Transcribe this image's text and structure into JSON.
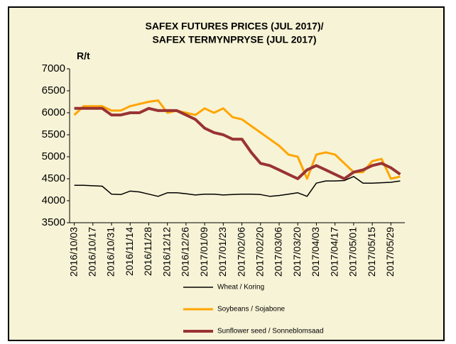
{
  "chart_data": {
    "type": "line",
    "title": [
      "SAFEX FUTURES PRICES (JUL 2017)/",
      "SAFEX TERMYNPRYSE (JUL 2017)"
    ],
    "y_label": "R/t",
    "categories": [
      "2016/10/03",
      null,
      "2016/10/17",
      null,
      "2016/10/31",
      null,
      "2016/11/14",
      null,
      "2016/11/28",
      null,
      "2016/12/12",
      null,
      "2016/12/26",
      null,
      "2017/01/09",
      null,
      "2017/01/23",
      null,
      "2017/02/06",
      null,
      "2017/02/20",
      null,
      "2017/03/06",
      null,
      "2017/03/20",
      null,
      "2017/04/03",
      null,
      "2017/04/17",
      null,
      "2017/05/01",
      null,
      "2017/05/15",
      null,
      "2017/05/29",
      null
    ],
    "series": [
      {
        "name": "Wheat / Koring",
        "color": "#000000",
        "width": 1.5,
        "values": [
          4350,
          4350,
          4340,
          4330,
          4150,
          4140,
          4220,
          4200,
          4150,
          4100,
          4180,
          4180,
          4160,
          4130,
          4150,
          4150,
          4130,
          4140,
          4150,
          4150,
          4140,
          4100,
          4120,
          4150,
          4180,
          4100,
          4400,
          4450,
          4450,
          4460,
          4550,
          4400,
          4400,
          4410,
          4420,
          4450
        ]
      },
      {
        "name": "Soybeans / Sojabone",
        "color": "#ffa500",
        "width": 3,
        "values": [
          5950,
          6150,
          6150,
          6150,
          6050,
          6050,
          6150,
          6200,
          6250,
          6280,
          6000,
          6050,
          6000,
          5950,
          6100,
          6000,
          6100,
          5900,
          5850,
          5700,
          5550,
          5400,
          5250,
          5050,
          5000,
          4500,
          5050,
          5100,
          5050,
          4850,
          4650,
          4650,
          4900,
          4950,
          4500,
          4550
        ]
      },
      {
        "name": "Sunflower seed / Sonneblomsaad",
        "color": "#993333",
        "width": 4,
        "values": [
          6100,
          6100,
          6100,
          6100,
          5950,
          5950,
          6000,
          6000,
          6100,
          6050,
          6050,
          6050,
          5950,
          5850,
          5650,
          5550,
          5500,
          5400,
          5400,
          5100,
          4850,
          4800,
          4700,
          4600,
          4500,
          4700,
          4800,
          4700,
          4600,
          4500,
          4650,
          4700,
          4800,
          4850,
          4750,
          4600
        ]
      }
    ],
    "ylim": [
      3500,
      7000
    ],
    "yticks": [
      3500,
      4000,
      4500,
      5000,
      5500,
      6000,
      6500,
      7000
    ],
    "grid": false
  }
}
